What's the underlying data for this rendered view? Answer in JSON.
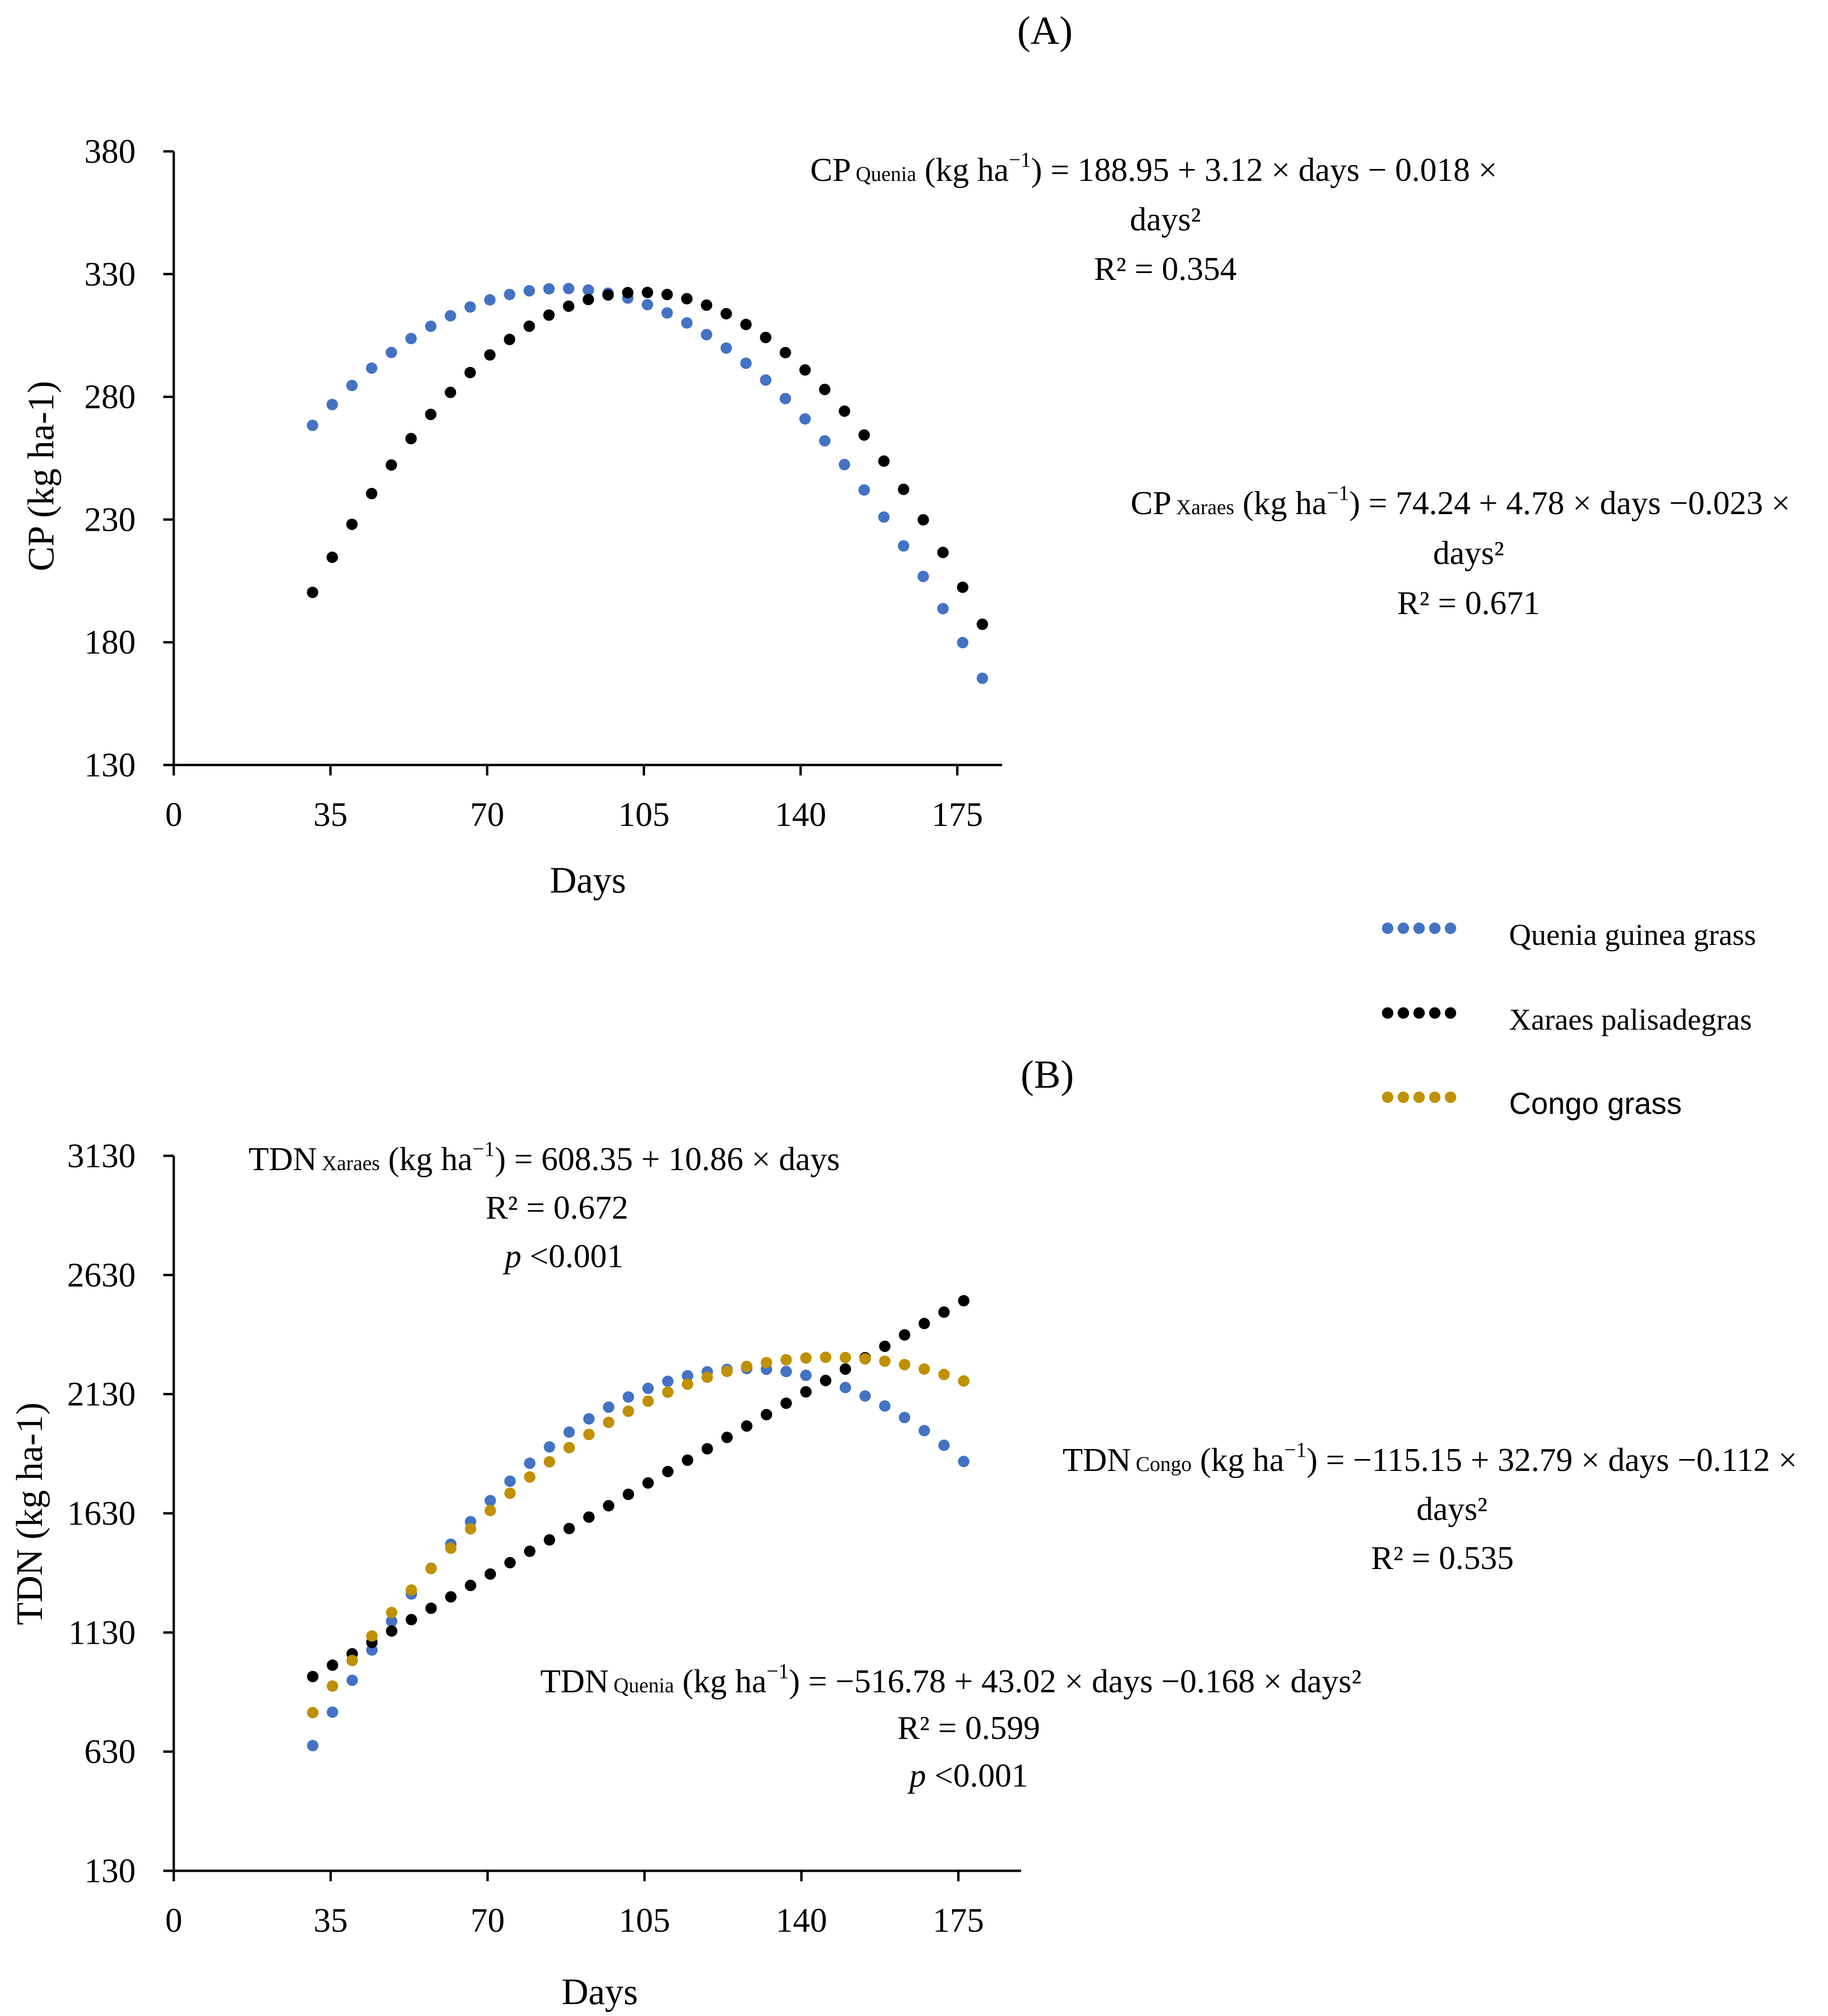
{
  "chart_data": [
    {
      "type": "scatter",
      "panel": "(A)",
      "xlabel": "Days",
      "ylabel": "CP (kg ha-1)",
      "xlim": [
        0,
        185
      ],
      "ylim": [
        130,
        380
      ],
      "xticks": [
        0,
        35,
        70,
        105,
        140,
        175
      ],
      "yticks": [
        130,
        180,
        230,
        280,
        330,
        380
      ],
      "series": [
        {
          "name": "Quenia guinea grass",
          "color": "#4472C4",
          "model": {
            "a": 188.95,
            "b": 3.12,
            "c": -0.018
          },
          "x_range": [
            31,
            181
          ]
        },
        {
          "name": "Xaraes palisadegras",
          "color": "#000000",
          "model": {
            "a": 74.24,
            "b": 4.78,
            "c": -0.023
          },
          "x_range": [
            31,
            181
          ]
        }
      ],
      "annotations": [
        {
          "id": "quenia",
          "prefix": "CP",
          "subscript": "Quenia",
          "line1": " (kg ha",
          "sup": "−1",
          "line1_rest": ") = 188.95 + 3.12 × days − 0.018 ×",
          "line2": "days²",
          "line3": "R² = 0.354"
        },
        {
          "id": "xaraes",
          "prefix": "CP",
          "subscript": "Xaraes",
          "line1": " (kg ha",
          "sup": "−1",
          "line1_rest": ") = 74.24 + 4.78 × days −0.023 ×",
          "line2": "days²",
          "line3": "R² = 0.671"
        }
      ]
    },
    {
      "type": "scatter",
      "panel": "(B)",
      "xlabel": "Days",
      "ylabel": "TDN (kg ha-1)",
      "xlim": [
        0,
        189
      ],
      "ylim": [
        130,
        3130
      ],
      "xticks": [
        0,
        35,
        70,
        105,
        140,
        175
      ],
      "yticks": [
        130,
        630,
        1130,
        1630,
        2130,
        2630,
        3130
      ],
      "series": [
        {
          "name": "Quenia guinea grass",
          "color": "#4472C4",
          "model": {
            "a": -516.78,
            "b": 43.02,
            "c": -0.168
          },
          "x_range": [
            31,
            179
          ]
        },
        {
          "name": "Xaraes palisadegras",
          "color": "#000000",
          "model": {
            "a": 608.35,
            "b": 10.86,
            "c": 0
          },
          "x_range": [
            31,
            179
          ]
        },
        {
          "name": "Congo grass",
          "color": "#BF9000",
          "model": {
            "a": -115.15,
            "b": 32.79,
            "c": -0.112
          },
          "x_range": [
            31,
            179
          ]
        }
      ],
      "annotations": [
        {
          "id": "xaraes",
          "prefix": "TDN",
          "subscript": "Xaraes",
          "line1": " (kg ha",
          "sup": "−1",
          "line1_rest": ") = 608.35 + 10.86 × days",
          "line2": "R² = 0.672",
          "p_label": "p",
          "p_value": " <0.001"
        },
        {
          "id": "congo",
          "prefix": "TDN",
          "subscript": "Congo",
          "line1": " (kg ha",
          "sup": "−1",
          "line1_rest": ") = −115.15 + 32.79 × days −0.112 ×",
          "line2": "days²",
          "line3": "R² = 0.535"
        },
        {
          "id": "quenia",
          "prefix": "TDN",
          "subscript": "Quenia",
          "line1": " (kg ha",
          "sup": "−1",
          "line1_rest": ") = −516.78 + 43.02 × days −0.168 × days²",
          "line2": "R² = 0.599",
          "p_label": "p",
          "p_value": " <0.001"
        }
      ]
    }
  ],
  "legend": [
    {
      "label": "Quenia guinea grass",
      "color": "#4472C4"
    },
    {
      "label": "Xaraes palisadegras",
      "color": "#000000"
    },
    {
      "label": "Congo grass",
      "color": "#BF9000"
    }
  ]
}
